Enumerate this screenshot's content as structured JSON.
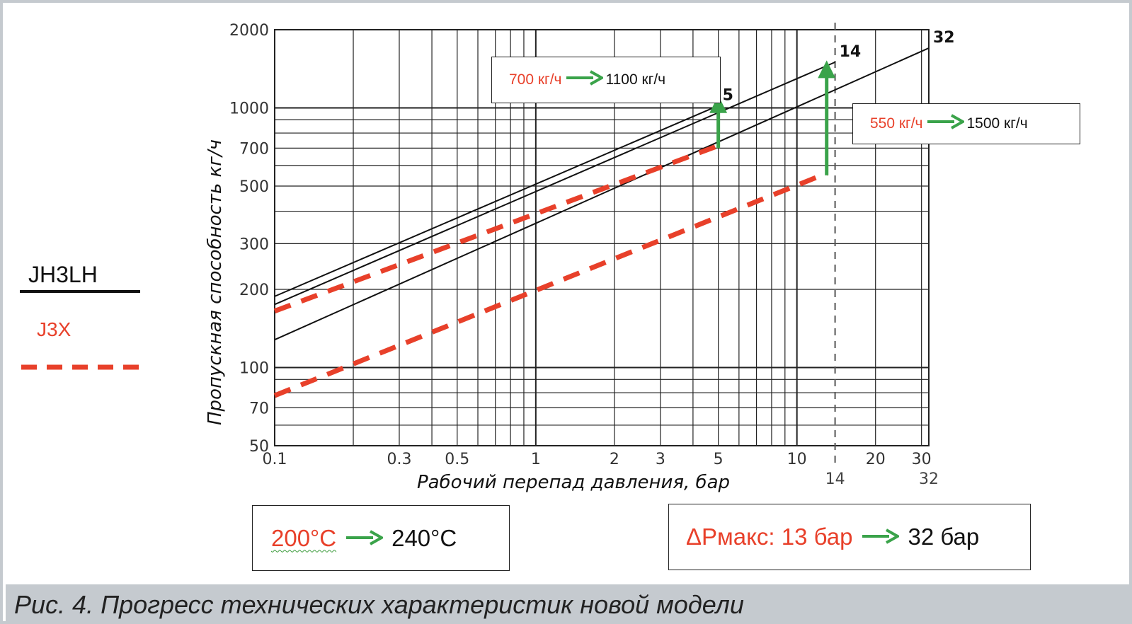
{
  "legend": {
    "jh3lh_label": "JH3LH",
    "j3x_label": "J3X",
    "colors": {
      "jh3lh": "#111111",
      "j3x": "#e8402a",
      "arrow": "#3aa34a"
    }
  },
  "annotations": {
    "top_box": {
      "from": "700 кг/ч",
      "to": "1100 кг/ч"
    },
    "right_box": {
      "from": "550 кг/ч",
      "to": "1500 кг/ч"
    },
    "temp_box": {
      "from": "200°C",
      "to": "240°C"
    },
    "pressure_box": {
      "from": "ΔPмакс: 13 бар",
      "to": "32 бар"
    }
  },
  "caption": "Рис. 4. Прогресс технических характеристик новой модели",
  "chart_data": {
    "type": "line",
    "xlabel": "Рабочий перепад давления, бар",
    "ylabel": "Пропускная способность кг/ч",
    "xscale": "log",
    "yscale": "log",
    "xlim": [
      0.1,
      32
    ],
    "ylim": [
      50,
      2000
    ],
    "grid": true,
    "x_ticks": [
      0.1,
      0.3,
      0.5,
      1,
      2,
      3,
      5,
      10,
      20,
      30
    ],
    "x_tick_labels": [
      "0.1",
      "0.3",
      "0.5",
      "1",
      "2",
      "3",
      "5",
      "10",
      "20",
      "30"
    ],
    "y_ticks": [
      50,
      70,
      100,
      200,
      300,
      500,
      700,
      1000,
      2000
    ],
    "y_tick_labels": [
      "50",
      "70",
      "100",
      "200",
      "300",
      "500",
      "700",
      "1000",
      "2000"
    ],
    "extra_x_labels": [
      {
        "x": 14,
        "label": "14"
      },
      {
        "x": 32,
        "label": "32"
      }
    ],
    "series": [
      {
        "name": "5",
        "style": "solid",
        "x": [
          0.1,
          5
        ],
        "y": [
          188,
          1020
        ]
      },
      {
        "name": "14",
        "style": "solid",
        "x": [
          0.1,
          14
        ],
        "y": [
          175,
          1500
        ]
      },
      {
        "name": "32",
        "style": "solid",
        "x": [
          0.1,
          32
        ],
        "y": [
          128,
          1700
        ]
      },
      {
        "style": "dashed",
        "x": [
          0.1,
          5
        ],
        "y": [
          165,
          715
        ]
      },
      {
        "style": "dashed",
        "x": [
          0.1,
          13
        ],
        "y": [
          78,
          560
        ]
      }
    ],
    "arrows": [
      {
        "x": 5,
        "from": 700,
        "to": 1100
      },
      {
        "x": 13,
        "from": 550,
        "to": 1500
      }
    ],
    "vline": {
      "x": 14,
      "style": "dashed"
    }
  }
}
